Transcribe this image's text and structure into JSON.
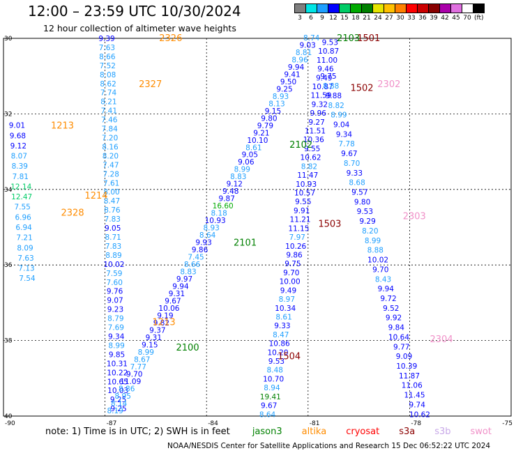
{
  "title": "12:00 – 23:59 UTC 10/30/2024",
  "subtitle": "12 hour collection of altimeter wave heights",
  "legend": {
    "unit": "(ft)",
    "items": [
      {
        "label": "3",
        "color": "#7f7f7f"
      },
      {
        "label": "6",
        "color": "#00e5e5"
      },
      {
        "label": "9",
        "color": "#1f9fff"
      },
      {
        "label": "12",
        "color": "#0000ff"
      },
      {
        "label": "15",
        "color": "#00cc66"
      },
      {
        "label": "18",
        "color": "#00aa00"
      },
      {
        "label": "21",
        "color": "#008000"
      },
      {
        "label": "24",
        "color": "#e5e500"
      },
      {
        "label": "27",
        "color": "#ffc000"
      },
      {
        "label": "30",
        "color": "#ff8000"
      },
      {
        "label": "33",
        "color": "#ff0000"
      },
      {
        "label": "36",
        "color": "#cc0000"
      },
      {
        "label": "39",
        "color": "#880000"
      },
      {
        "label": "42",
        "color": "#aa00aa"
      },
      {
        "label": "45",
        "color": "#e070e0"
      },
      {
        "label": "70",
        "color": "#ffffff"
      },
      {
        "label": "",
        "color": "#000000"
      }
    ]
  },
  "axes": {
    "lat_labels": [
      "30",
      "32",
      "34",
      "36",
      "38",
      "40"
    ],
    "lon_labels": [
      "-90",
      "-87",
      "-84",
      "-81",
      "-78",
      "-75"
    ]
  },
  "note": {
    "prefix": "note:  1) Time is in UTC; 2) SWH is in feet",
    "satellites": [
      {
        "name": "jason3",
        "color": "#008000"
      },
      {
        "name": "altika",
        "color": "#ff8c00"
      },
      {
        "name": "cryosat",
        "color": "#ff0000"
      },
      {
        "name": "s3a",
        "color": "#8b0000"
      },
      {
        "name": "s3b",
        "color": "#c8a8e8"
      },
      {
        "name": "swot",
        "color": "#f090c8"
      }
    ]
  },
  "credits": "NOAA/NESDIS Center for Satellite Applications and Research    15 Dec 06:52:22 UTC 2024",
  "pass_labels": [
    {
      "text": "2326",
      "lon": -85.4,
      "lat": 29.98,
      "color": "#ff8c00"
    },
    {
      "text": "2327",
      "lon": -86.0,
      "lat": 31.2,
      "color": "#ff8c00"
    },
    {
      "text": "1213",
      "lon": -88.6,
      "lat": 32.3,
      "color": "#ff8c00"
    },
    {
      "text": "1214",
      "lon": -87.6,
      "lat": 34.15,
      "color": "#ff8c00"
    },
    {
      "text": "2328",
      "lon": -88.3,
      "lat": 34.6,
      "color": "#ff8c00"
    },
    {
      "text": "1213",
      "lon": -85.6,
      "lat": 37.5,
      "color": "#ff8c00"
    },
    {
      "text": "2100",
      "lon": -84.9,
      "lat": 38.17,
      "color": "#008000"
    },
    {
      "text": "2101",
      "lon": -83.2,
      "lat": 35.4,
      "color": "#008000"
    },
    {
      "text": "2102",
      "lon": -81.55,
      "lat": 32.8,
      "color": "#008000"
    },
    {
      "text": "2103",
      "lon": -80.15,
      "lat": 29.98,
      "color": "#008000"
    },
    {
      "text": "1501",
      "lon": -79.55,
      "lat": 29.98,
      "color": "#8b0000"
    },
    {
      "text": "1502",
      "lon": -79.75,
      "lat": 31.3,
      "color": "#8b0000"
    },
    {
      "text": "1503",
      "lon": -80.7,
      "lat": 34.9,
      "color": "#8b0000"
    },
    {
      "text": "1504",
      "lon": -81.9,
      "lat": 38.4,
      "color": "#8b0000"
    },
    {
      "text": "2302",
      "lon": -78.95,
      "lat": 31.2,
      "color": "#f090c8"
    },
    {
      "text": "2303",
      "lon": -78.2,
      "lat": 34.7,
      "color": "#f090c8"
    },
    {
      "text": "2304",
      "lon": -77.4,
      "lat": 37.95,
      "color": "#f090c8"
    }
  ],
  "tracks": [
    {
      "id": "altika-west",
      "values": [
        "9.39",
        "7.63",
        "8.66",
        "7.52",
        "8.08",
        "8.62",
        "7.74",
        "8.21",
        "7.41",
        "7.46",
        "7.84",
        "7.20",
        "8.16",
        "8.20",
        "7.47",
        "7.28",
        "7.61",
        "8.00",
        "8.47",
        "8.76",
        "7.83",
        "9.05",
        "8.71",
        "7.83",
        "8.89",
        "10.02",
        "7.59",
        "7.60",
        "9.76",
        "9.07",
        "9.23",
        "8.79",
        "7.69",
        "9.34",
        "8.99",
        "9.85",
        "10.31",
        "10.22",
        "10.65",
        "10.03",
        "9.25",
        "9.25"
      ],
      "lon_start": -86.95,
      "lat_start": 30.0,
      "lon_end": -86.6,
      "lat_end": 39.8
    },
    {
      "id": "altika-short",
      "values": [
        "9.01",
        "9.68",
        "9.12",
        "8.07",
        "8.39",
        "7.81",
        "12.14",
        "12.47",
        "7.55",
        "6.96",
        "6.94",
        "7.21",
        "8.09",
        "7.63",
        "7.13",
        "7.54"
      ],
      "lon_start": -89.6,
      "lat_start": 32.3,
      "lon_end": -89.3,
      "lat_end": 36.35
    },
    {
      "id": "jason3-asc",
      "values": [
        "8.19",
        "8.14",
        "8.95",
        "8.86",
        "11.09",
        "9.70",
        "7.77",
        "8.67",
        "8.99",
        "9.15",
        "9.31",
        "9.37",
        "9.82",
        "9.19",
        "10.06",
        "9.67",
        "9.31",
        "9.94",
        "9.97",
        "8.83",
        "8.66",
        "7.45",
        "9.86",
        "9.93",
        "8.64",
        "8.93",
        "10.93",
        "8.18",
        "16.60",
        "9.87",
        "9.48",
        "9.12",
        "8.83",
        "8.99",
        "9.06",
        "9.05",
        "8.61",
        "10.10",
        "9.21",
        "9.79",
        "9.80",
        "9.15",
        "8.13",
        "8.93",
        "9.25",
        "9.50",
        "9.41",
        "9.94",
        "8.96",
        "8.81",
        "9.03",
        "8.74"
      ],
      "lon_start": -86.7,
      "lat_start": 39.85,
      "lon_end": -80.9,
      "lat_end": 29.98
    },
    {
      "id": "cryosat-desc",
      "values": [
        "9.53",
        "10.87",
        "11.00",
        "9.46",
        "9.49",
        "10.87",
        "11.59",
        "9.32",
        "9.96",
        "9.27",
        "11.51",
        "10.36",
        "9.55",
        "10.62",
        "8.82",
        "11.47",
        "10.93",
        "10.57",
        "9.55",
        "9.91",
        "11.21",
        "11.15",
        "7.97",
        "10.26",
        "9.86",
        "9.75",
        "9.70",
        "10.00",
        "9.49",
        "8.97",
        "10.34",
        "8.61",
        "9.33",
        "8.47",
        "10.86",
        "10.20",
        "9.53",
        "8.48",
        "10.70",
        "8.94",
        "19.41",
        "9.67",
        "8.64"
      ],
      "lon_start": -80.35,
      "lat_start": 30.1,
      "lon_end": -82.2,
      "lat_end": 39.95
    },
    {
      "id": "swot-desc",
      "values": [
        "9.75",
        "8.88",
        "9.88",
        "8.82",
        "8.99",
        "9.04",
        "9.34",
        "7.78",
        "9.67",
        "8.70",
        "9.33",
        "8.68",
        "9.57",
        "9.80",
        "9.53",
        "9.29",
        "8.20",
        "8.99",
        "8.88",
        "10.02",
        "9.70",
        "8.43",
        "9.94",
        "9.72",
        "9.52",
        "9.92",
        "9.84",
        "10.64",
        "9.77",
        "9.09",
        "10.39",
        "11.87",
        "11.06",
        "11.45",
        "9.74",
        "10.62"
      ],
      "lon_start": -80.4,
      "lat_start": 31.0,
      "lon_end": -77.7,
      "lat_end": 39.95
    }
  ]
}
